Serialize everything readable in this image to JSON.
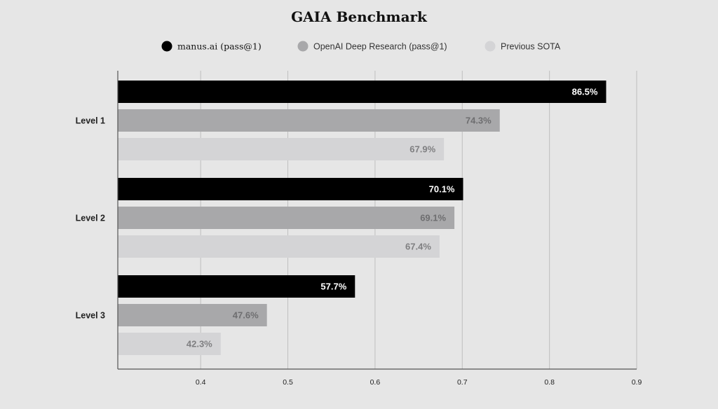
{
  "chart_data": {
    "type": "bar",
    "orientation": "horizontal",
    "title": "GAIA Benchmark",
    "xlabel": "",
    "ylabel": "",
    "categories": [
      "Level 1",
      "Level 2",
      "Level 3"
    ],
    "series": [
      {
        "name": "manus.ai (pass@1)",
        "color": "#000000",
        "label_color": "#ffffff",
        "values": [
          0.865,
          0.701,
          0.577
        ],
        "labels": [
          "86.5%",
          "70.1%",
          "57.7%"
        ]
      },
      {
        "name": "OpenAI Deep Research (pass@1)",
        "color": "#a8a8aa",
        "label_color": "#6e6e70",
        "values": [
          0.743,
          0.691,
          0.476
        ],
        "labels": [
          "74.3%",
          "69.1%",
          "47.6%"
        ]
      },
      {
        "name": "Previous SOTA",
        "color": "#d4d4d6",
        "label_color": "#7f7f81",
        "values": [
          0.679,
          0.674,
          0.423
        ],
        "labels": [
          "67.9%",
          "67.4%",
          "42.3%"
        ]
      }
    ],
    "xlim": [
      0.305,
      0.9
    ],
    "xticks": [
      0.4,
      0.5,
      0.6,
      0.7,
      0.8,
      0.9
    ],
    "xtick_labels": [
      "0.4",
      "0.5",
      "0.6",
      "0.7",
      "0.8",
      "0.9"
    ],
    "grid": "vertical",
    "legend_position": "top-center"
  },
  "colors": {
    "background": "#e6e6e6",
    "gridline": "#bfbfbf",
    "axis": "#555555"
  }
}
